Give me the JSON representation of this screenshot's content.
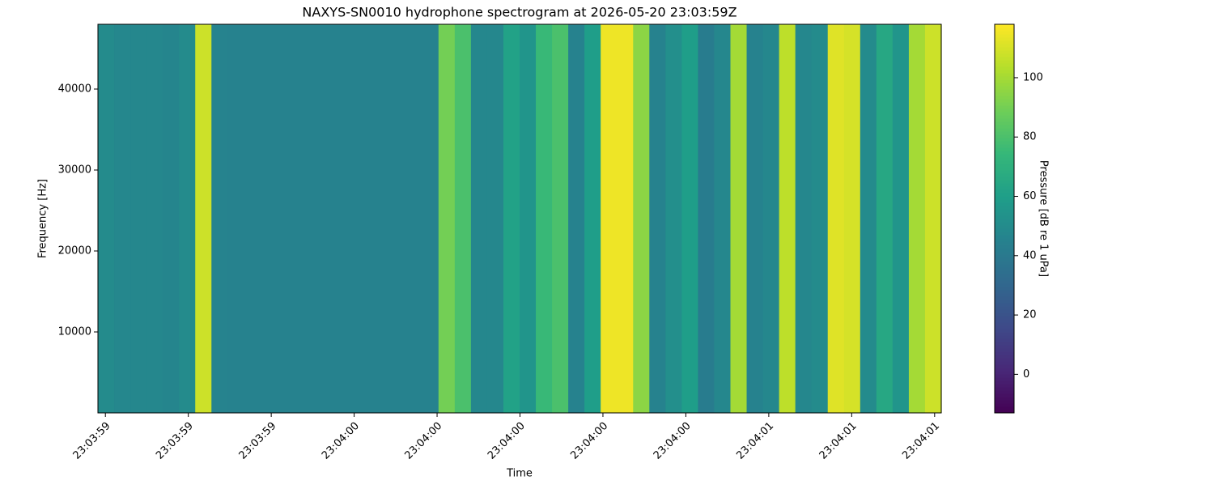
{
  "chart_data": {
    "type": "spectrogram",
    "title": "NAXYS-SN0010 hydrophone spectrogram at 2026-05-20 23:03:59Z",
    "xlabel": "Time",
    "ylabel": "Frequency [Hz]",
    "colorbar_label": "Pressure [dB re 1 uPa]",
    "colormap": "viridis",
    "xlim": [
      -0.09,
      10.08
    ],
    "xticks": [
      {
        "value": 0,
        "label": "23:03:59"
      },
      {
        "value": 1,
        "label": "23:03:59"
      },
      {
        "value": 2,
        "label": "23:03:59"
      },
      {
        "value": 3,
        "label": "23:04:00"
      },
      {
        "value": 4,
        "label": "23:04:00"
      },
      {
        "value": 5,
        "label": "23:04:00"
      },
      {
        "value": 6,
        "label": "23:04:00"
      },
      {
        "value": 7,
        "label": "23:04:00"
      },
      {
        "value": 8,
        "label": "23:04:01"
      },
      {
        "value": 9,
        "label": "23:04:01"
      },
      {
        "value": 10,
        "label": "23:04:01"
      }
    ],
    "ylim": [
      0,
      48000
    ],
    "yticks": [
      10000,
      20000,
      30000,
      40000
    ],
    "clim": [
      -13,
      118
    ],
    "cticks": [
      0,
      20,
      40,
      60,
      80,
      100
    ],
    "values": [
      50,
      48,
      48,
      48,
      47,
      50,
      108,
      46,
      45,
      45,
      45,
      45,
      45,
      45,
      45,
      45,
      45,
      45,
      45,
      45,
      45,
      90,
      80,
      48,
      48,
      62,
      55,
      75,
      80,
      45,
      60,
      115,
      115,
      95,
      45,
      52,
      60,
      42,
      48,
      100,
      45,
      48,
      105,
      48,
      50,
      112,
      110,
      50,
      65,
      55,
      100,
      108
    ]
  }
}
